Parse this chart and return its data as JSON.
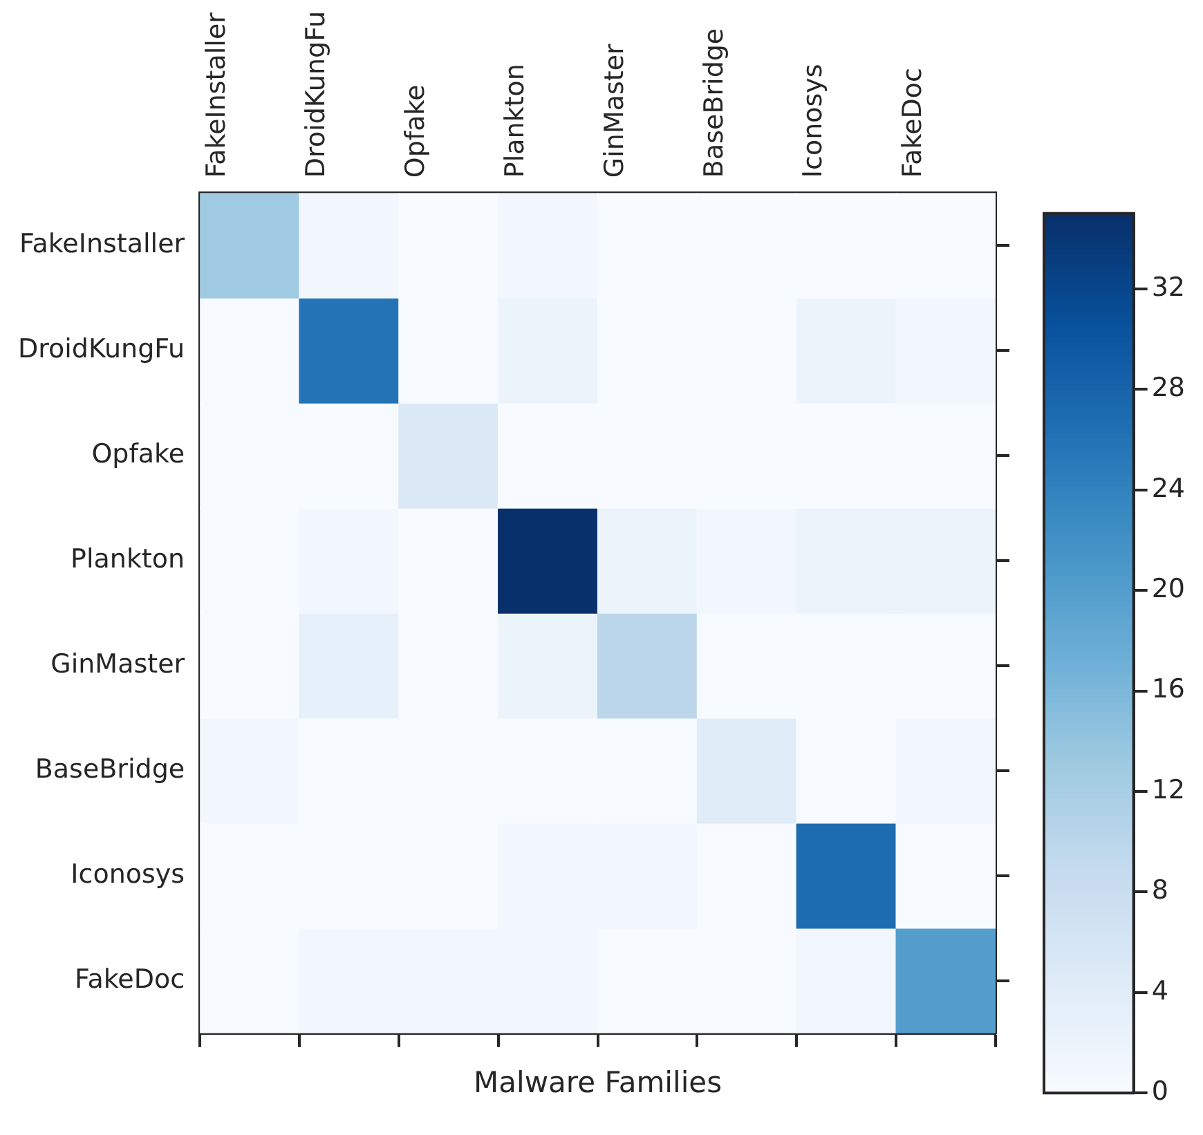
{
  "chart_data": {
    "type": "heatmap",
    "xlabel": "Malware Families",
    "categories": [
      "FakeInstaller",
      "DroidKungFu",
      "Opfake",
      "Plankton",
      "GinMaster",
      "BaseBridge",
      "Iconosys",
      "FakeDoc"
    ],
    "y_categories": [
      "FakeInstaller",
      "DroidKungFu",
      "Opfake",
      "Plankton",
      "GinMaster",
      "BaseBridge",
      "Iconosys",
      "FakeDoc"
    ],
    "cells": [
      [
        13,
        1,
        0,
        1,
        0,
        0,
        0,
        0
      ],
      [
        0,
        26,
        0,
        2,
        0,
        0,
        2,
        1
      ],
      [
        0,
        0,
        5,
        0,
        0,
        0,
        0,
        0
      ],
      [
        0,
        1,
        0,
        35,
        2,
        1,
        2,
        2
      ],
      [
        0,
        3,
        0,
        2,
        10,
        0,
        0,
        0
      ],
      [
        1,
        0,
        0,
        0,
        0,
        4,
        0,
        1
      ],
      [
        0,
        0,
        0,
        1,
        1,
        0,
        27,
        0
      ],
      [
        0,
        1,
        1,
        1,
        0,
        0,
        1,
        20
      ]
    ],
    "clim": [
      0,
      35
    ],
    "cticks": [
      0,
      4,
      8,
      12,
      16,
      20,
      24,
      28,
      32
    ]
  }
}
